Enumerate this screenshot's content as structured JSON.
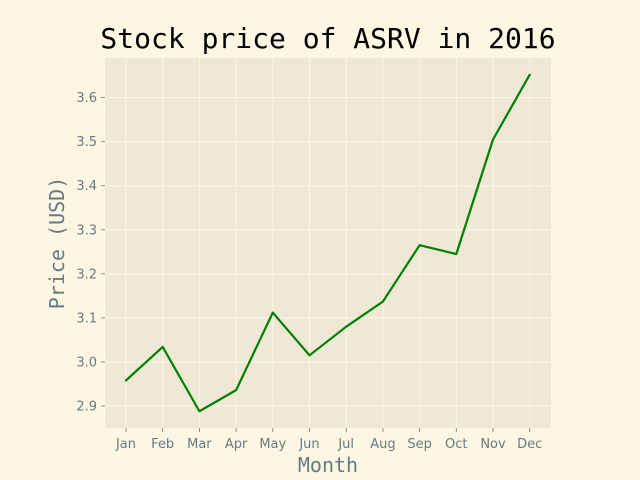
{
  "chart_data": {
    "type": "line",
    "title": "Stock price of ASRV in 2016",
    "xlabel": "Month",
    "ylabel": "Price (USD)",
    "categories": [
      "Jan",
      "Feb",
      "Mar",
      "Apr",
      "May",
      "Jun",
      "Jul",
      "Aug",
      "Sep",
      "Oct",
      "Nov",
      "Dec"
    ],
    "series": [
      {
        "values": [
          2.958,
          3.034,
          2.888,
          2.936,
          3.112,
          3.015,
          3.08,
          3.137,
          3.265,
          3.245,
          3.505,
          3.652
        ]
      }
    ],
    "yticks": [
      2.9,
      3.0,
      3.1,
      3.2,
      3.3,
      3.4,
      3.5,
      3.6
    ],
    "ylim": [
      2.85,
      3.69
    ],
    "grid": true,
    "colors": {
      "background": "#fdf6e3",
      "plot_area": "#eee8d5",
      "line": "#008000",
      "grid": "#fdf6e3",
      "tick_text": "#657b83"
    }
  }
}
